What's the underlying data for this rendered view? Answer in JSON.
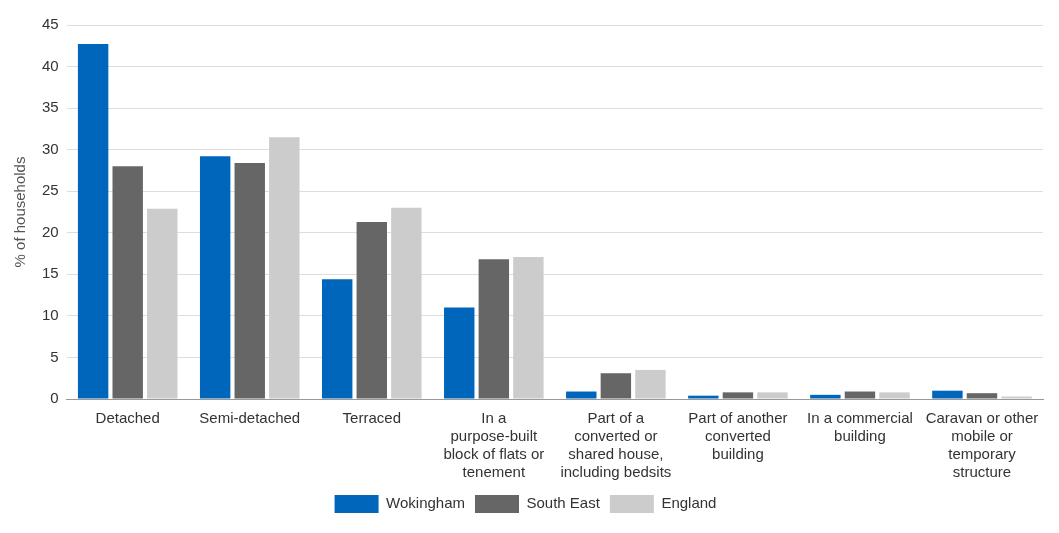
{
  "chart_data": {
    "type": "bar",
    "ylabel": "% of households",
    "categories": [
      "Detached",
      "Semi-detached",
      "Terraced",
      "In a purpose-built block of flats or tenement",
      "Part of a converted or shared house, including bedsits",
      "Part of another converted building",
      "In a commercial building",
      "Caravan or other mobile or temporary structure"
    ],
    "series": [
      {
        "name": "Wokingham",
        "color": "#0066bb",
        "values": [
          42.7,
          29.2,
          14.4,
          11.0,
          0.9,
          0.4,
          0.5,
          1.0
        ]
      },
      {
        "name": "South East",
        "color": "#666666",
        "values": [
          28.0,
          28.4,
          21.3,
          16.8,
          3.1,
          0.8,
          0.9,
          0.7
        ]
      },
      {
        "name": "England",
        "color": "#cccccc",
        "values": [
          22.9,
          31.5,
          23.0,
          17.1,
          3.5,
          0.8,
          0.8,
          0.3
        ]
      }
    ],
    "ylim": [
      0,
      45
    ],
    "yticks": [
      0,
      5,
      10,
      15,
      20,
      25,
      30,
      35,
      40,
      45
    ],
    "grid": "y",
    "legend": "bottom"
  }
}
